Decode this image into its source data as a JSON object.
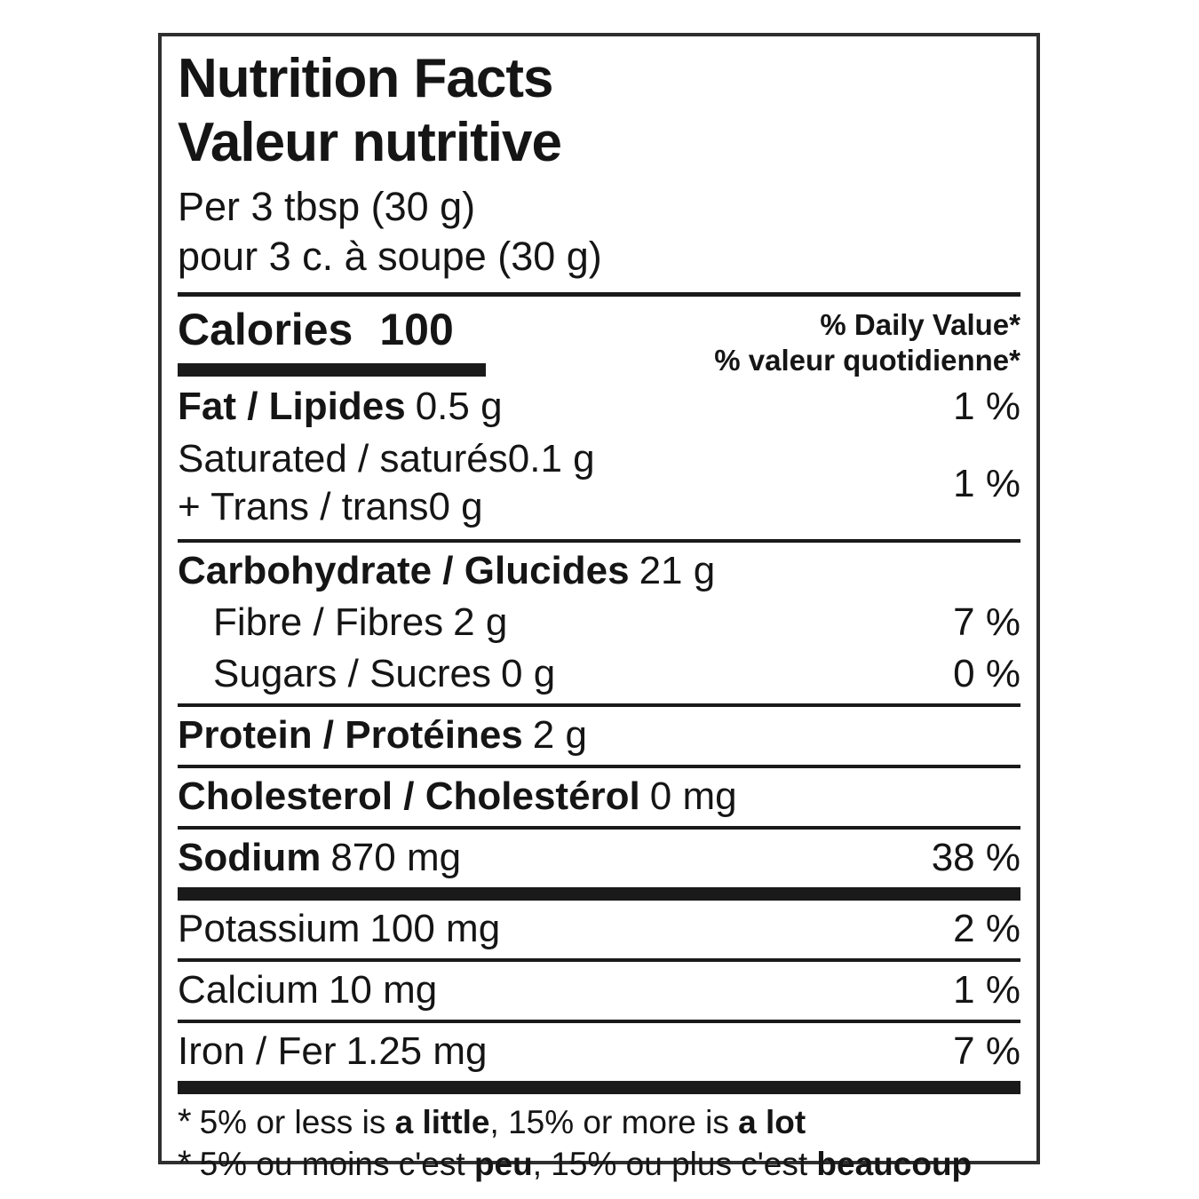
{
  "label": {
    "title_en": "Nutrition Facts",
    "title_fr": "Valeur nutritive",
    "serving_en": "Per 3 tbsp (30 g)",
    "serving_fr": "pour 3 c. à soupe (30 g)",
    "calories": {
      "label": "Calories",
      "value": "100"
    },
    "daily_value_header_en": "% Daily Value*",
    "daily_value_header_fr": "% valeur quotidienne*",
    "nutrients": {
      "fat": {
        "name": "Fat / Lipides",
        "value": "0.5 g",
        "dv": "1 %"
      },
      "saturated": {
        "name": "Saturated / saturés",
        "value": "0.1 g"
      },
      "trans": {
        "name": "+ Trans / trans",
        "value": "0 g"
      },
      "saturated_trans_dv": "1 %",
      "carbohydrate": {
        "name": "Carbohydrate / Glucides",
        "value": "21 g"
      },
      "fibre": {
        "name": "Fibre / Fibres",
        "value": "2 g",
        "dv": "7 %"
      },
      "sugars": {
        "name": "Sugars / Sucres",
        "value": "0 g",
        "dv": "0 %"
      },
      "protein": {
        "name": "Protein / Protéines",
        "value": "2 g"
      },
      "cholesterol": {
        "name": "Cholesterol / Cholestérol",
        "value": "0 mg"
      },
      "sodium": {
        "name": "Sodium",
        "value": "870 mg",
        "dv": "38 %"
      },
      "potassium": {
        "name": "Potassium",
        "value": "100 mg",
        "dv": "2 %"
      },
      "calcium": {
        "name": "Calcium",
        "value": "10 mg",
        "dv": "1 %"
      },
      "iron": {
        "name": "Iron / Fer",
        "value": "1.25 mg",
        "dv": "7 %"
      }
    },
    "footnotes": {
      "en": {
        "star": "*",
        "text1": "5% or less is ",
        "bold1": "a little",
        "text2": ", 15% or more is ",
        "bold2": "a lot"
      },
      "fr": {
        "star": "*",
        "text1": "5% ou moins c'est ",
        "bold1": "peu",
        "text2": ", 15% ou plus c'est ",
        "bold2": "beaucoup"
      }
    },
    "colors": {
      "text": "#151515",
      "border": "#2f2f2f",
      "bar": "#1a1a1a",
      "background": "#ffffff"
    }
  }
}
